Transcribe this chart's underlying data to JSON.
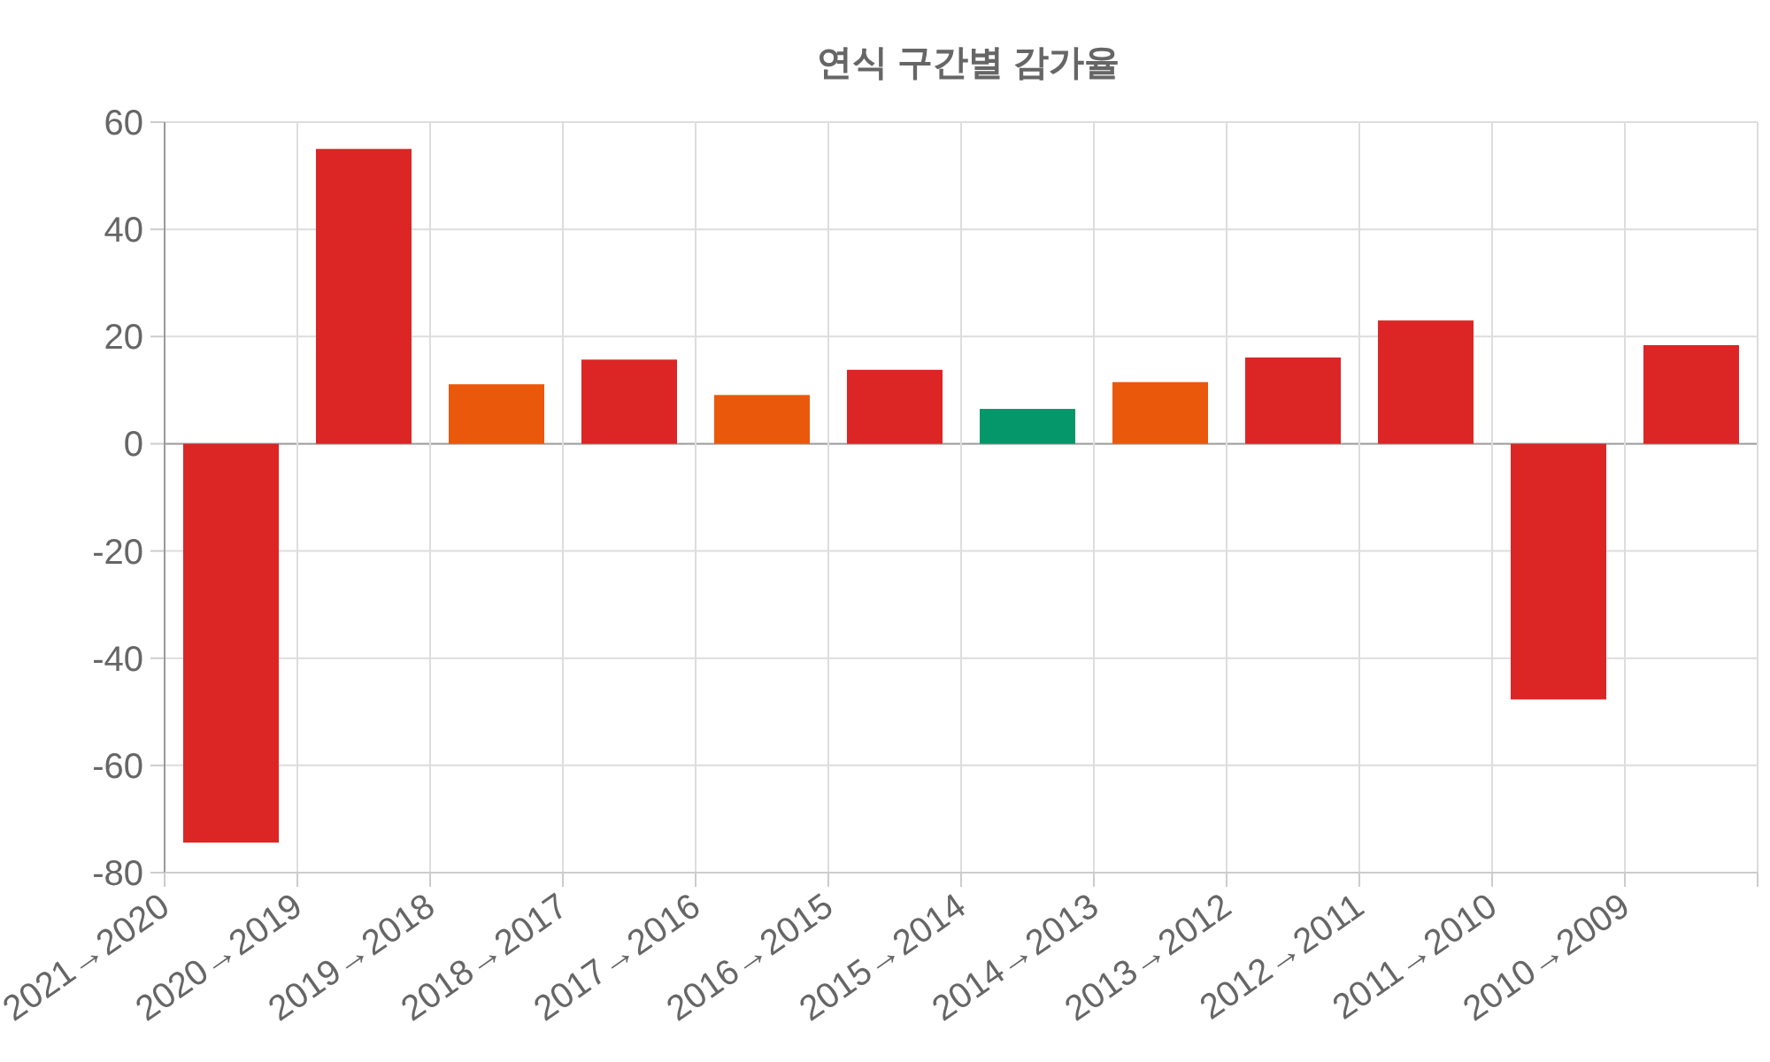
{
  "chart_data": {
    "type": "bar",
    "title": "연식 구간별 감가율",
    "categories": [
      "2021→2020",
      "2020→2019",
      "2019→2018",
      "2018→2017",
      "2017→2016",
      "2016→2015",
      "2015→2014",
      "2014→2013",
      "2013→2012",
      "2012→2011",
      "2011→2010",
      "2010→2009"
    ],
    "values": [
      -74.4,
      55.0,
      11.1,
      15.7,
      9.1,
      13.8,
      6.5,
      11.5,
      16.1,
      23.0,
      -47.7,
      18.4
    ],
    "colors": [
      "#dc2626",
      "#dc2626",
      "#ea580c",
      "#dc2626",
      "#ea580c",
      "#dc2626",
      "#059669",
      "#ea580c",
      "#dc2626",
      "#dc2626",
      "#dc2626",
      "#dc2626"
    ],
    "ylim": [
      -80,
      60
    ],
    "yticks": [
      -80,
      -60,
      -40,
      -20,
      0,
      20,
      40,
      60
    ],
    "grid": true
  }
}
